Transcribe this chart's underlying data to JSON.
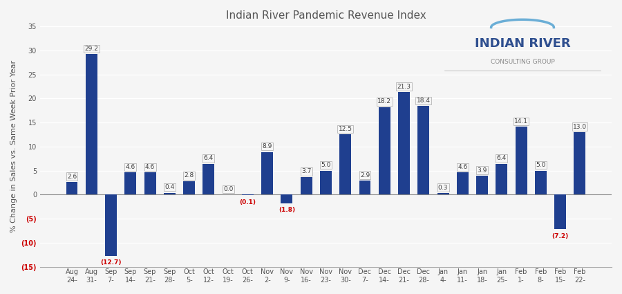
{
  "title": "Indian River Pandemic Revenue Index",
  "ylabel": "% Change in Sales vs. Same Week Prior Year",
  "categories": [
    "Aug\n24-",
    "Aug\n31-",
    "Sep\n7-",
    "Sep\n14-",
    "Sep\n21-",
    "Sep\n28-",
    "Oct\n5-",
    "Oct\n12-",
    "Oct\n19-",
    "Oct\n26-",
    "Nov\n2-",
    "Nov\n9-",
    "Nov\n16-",
    "Nov\n23-",
    "Nov\n30-",
    "Dec\n7-",
    "Dec\n14-",
    "Dec\n21-",
    "Dec\n28-",
    "Jan\n4-",
    "Jan\n11-",
    "Jan\n18-",
    "Jan\n25-",
    "Feb\n1-",
    "Feb\n8-",
    "Feb\n15-",
    "Feb\n22-"
  ],
  "values": [
    2.6,
    29.2,
    -12.7,
    4.6,
    4.6,
    0.4,
    2.8,
    6.4,
    0.0,
    -0.1,
    8.9,
    -1.8,
    3.7,
    5.0,
    12.5,
    2.9,
    18.2,
    21.3,
    18.4,
    0.3,
    4.6,
    3.9,
    6.4,
    14.1,
    5.0,
    -7.2,
    13.0
  ],
  "bar_color": "#1F3F8F",
  "label_color_positive": "#404040",
  "label_color_negative": "#CC0000",
  "ylim": [
    -15,
    35
  ],
  "yticks": [
    -15,
    -10,
    -5,
    0,
    5,
    10,
    15,
    20,
    25,
    30,
    35
  ],
  "title_fontsize": 11,
  "axis_label_fontsize": 8,
  "tick_fontsize": 7,
  "background_color": "#F5F5F5",
  "grid_color": "#FFFFFF",
  "logo_text_line1": "INDIAN RIVER",
  "logo_text_line2": "CONSULTING GROUP"
}
